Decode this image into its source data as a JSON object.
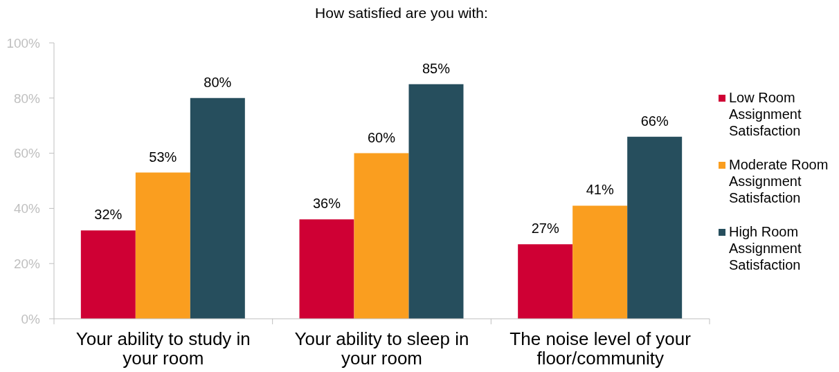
{
  "chart_data": {
    "type": "bar",
    "title": "How satisfied are you with:",
    "categories": [
      "Your ability to study in your room",
      "Your ability to sleep in your room",
      "The noise level of your floor/community"
    ],
    "series": [
      {
        "name": "Low Room Assignment Satisfaction",
        "color": "#cf0034",
        "values": [
          32,
          36,
          27
        ],
        "value_labels": [
          "32%",
          "36%",
          "27%"
        ]
      },
      {
        "name": "Moderate Room Assignment Satisfaction",
        "color": "#fa9e1f",
        "values": [
          53,
          60,
          41
        ],
        "value_labels": [
          "53%",
          "60%",
          "41%"
        ]
      },
      {
        "name": "High Room Assignment Satisfaction",
        "color": "#264e5d",
        "values": [
          80,
          85,
          66
        ],
        "value_labels": [
          "80%",
          "85%",
          "66%"
        ]
      }
    ],
    "ylim": [
      0,
      100
    ],
    "yticks": [
      {
        "value": 0,
        "label": "0%"
      },
      {
        "value": 20,
        "label": "20%"
      },
      {
        "value": 40,
        "label": "40%"
      },
      {
        "value": 60,
        "label": "60%"
      },
      {
        "value": 80,
        "label": "80%"
      },
      {
        "value": 100,
        "label": "100%"
      }
    ],
    "grid": false,
    "legend": "right"
  }
}
